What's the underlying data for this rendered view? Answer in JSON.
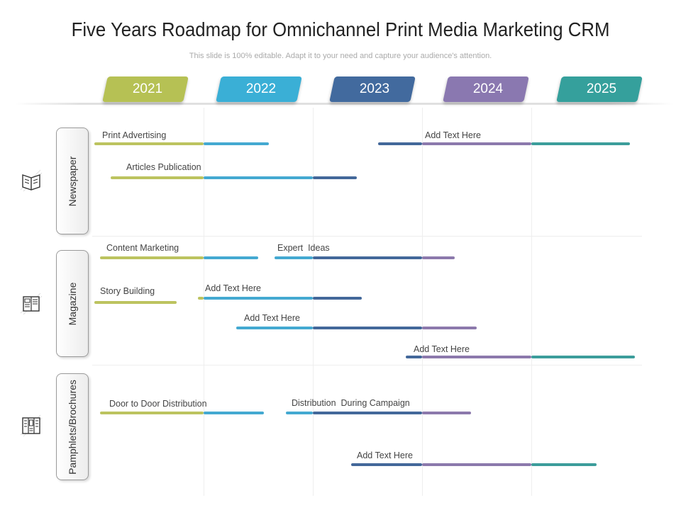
{
  "title": "Five Years Roadmap for Omnichannel Print Media Marketing CRM",
  "subtitle": "This slide is 100% editable. Adapt it to your need and capture your audience's attention.",
  "colors": {
    "green": "#bcc35f",
    "blue": "#44a9d1",
    "navy": "#43689a",
    "purple": "#8c79ac",
    "teal": "#3c9d9b"
  },
  "years": [
    {
      "label": "2021",
      "color": "#b6c154"
    },
    {
      "label": "2022",
      "color": "#3aafd6"
    },
    {
      "label": "2023",
      "color": "#426a9e"
    },
    {
      "label": "2024",
      "color": "#8a78b0"
    },
    {
      "label": "2025",
      "color": "#35a09c"
    }
  ],
  "categories": [
    {
      "label": "Newspaper",
      "icon": "newspaper-icon"
    },
    {
      "label": "Magazine",
      "icon": "magazine-icon"
    },
    {
      "label": "Pamphlets/Brochures",
      "icon": "brochure-icon"
    }
  ],
  "tasks": [
    {
      "label": "Print Advertising",
      "start": 2021.0,
      "end": 2022.6
    },
    {
      "label": "Add Text Here",
      "start": 2023.6,
      "end": 2025.9
    },
    {
      "label": "Articles Publication",
      "start": 2021.15,
      "end": 2023.4
    },
    {
      "label": "Content Marketing",
      "start": 2021.05,
      "end": 2022.5
    },
    {
      "label": "Expert  Ideas",
      "start": 2022.65,
      "end": 2024.3
    },
    {
      "label": "Story Building",
      "start": 2021.0,
      "end": 2021.75
    },
    {
      "label": "Add Text Here",
      "start": 2021.95,
      "end": 2023.45
    },
    {
      "label": "Add Text Here",
      "start": 2022.3,
      "end": 2024.5
    },
    {
      "label": "Add Text Here",
      "start": 2023.85,
      "end": 2025.95
    },
    {
      "label": "Door to Door Distribution",
      "start": 2021.05,
      "end": 2022.55
    },
    {
      "label": "Distribution  During Campaign",
      "start": 2022.75,
      "end": 2024.45
    },
    {
      "label": "Add Text Here",
      "start": 2023.35,
      "end": 2025.6
    }
  ]
}
